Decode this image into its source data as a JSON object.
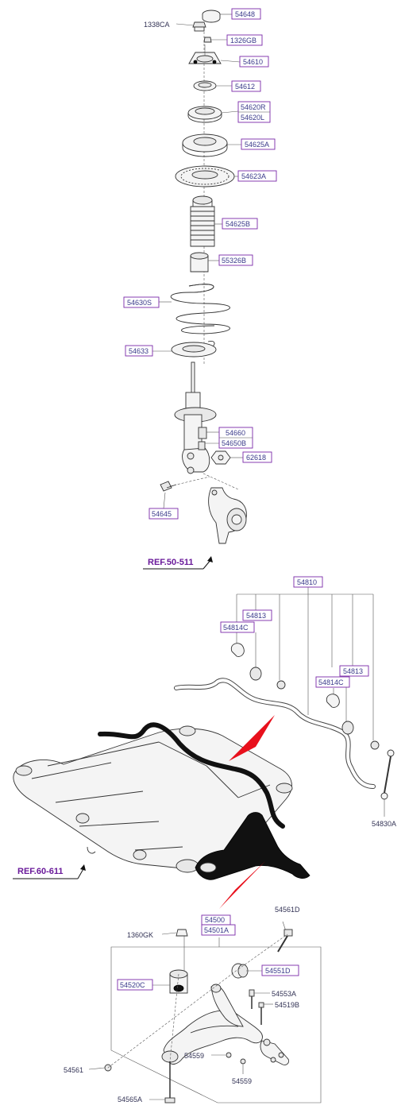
{
  "labels": {
    "p54648": "54648",
    "p1338CA": "1338CA",
    "p1326GB": "1326GB",
    "p54610": "54610",
    "p54612": "54612",
    "p54620R": "54620R",
    "p54620L": "54620L",
    "p54625A": "54625A",
    "p54623A": "54623A",
    "p54625B": "54625B",
    "p55326B": "55326B",
    "p54630S": "54630S",
    "p54633": "54633",
    "p54660": "54660",
    "p54650B": "54650B",
    "p62618": "62618",
    "p54645": "54645",
    "ref50": "REF.50-511",
    "p54810": "54810",
    "p54813a": "54813",
    "p54814Ca": "54814C",
    "p54813b": "54813",
    "p54814Cb": "54814C",
    "p54830A": "54830A",
    "ref60": "REF.60-611",
    "p54500": "54500",
    "p54501A": "54501A",
    "p1360GK": "1360GK",
    "p54561D": "54561D",
    "p54520C": "54520C",
    "p54551D": "54551D",
    "p54553A": "54553A",
    "p54519B": "54519B",
    "p54559a": "54559",
    "p54559b": "54559",
    "p54561": "54561",
    "p54565A": "54565A"
  },
  "colors": {
    "label_box_border": "#7a2aa8",
    "label_text": "#3a3a8a",
    "ref_text": "#6a1a9a",
    "pointer_arrow": "#e8101c"
  },
  "icons": [
    "strut-mount-assembly",
    "coil-spring",
    "shock-absorber",
    "steering-knuckle",
    "stabilizer-bar",
    "stabilizer-link",
    "front-subframe",
    "lower-control-arm",
    "ball-joint",
    "bushing",
    "bolt",
    "nut"
  ]
}
